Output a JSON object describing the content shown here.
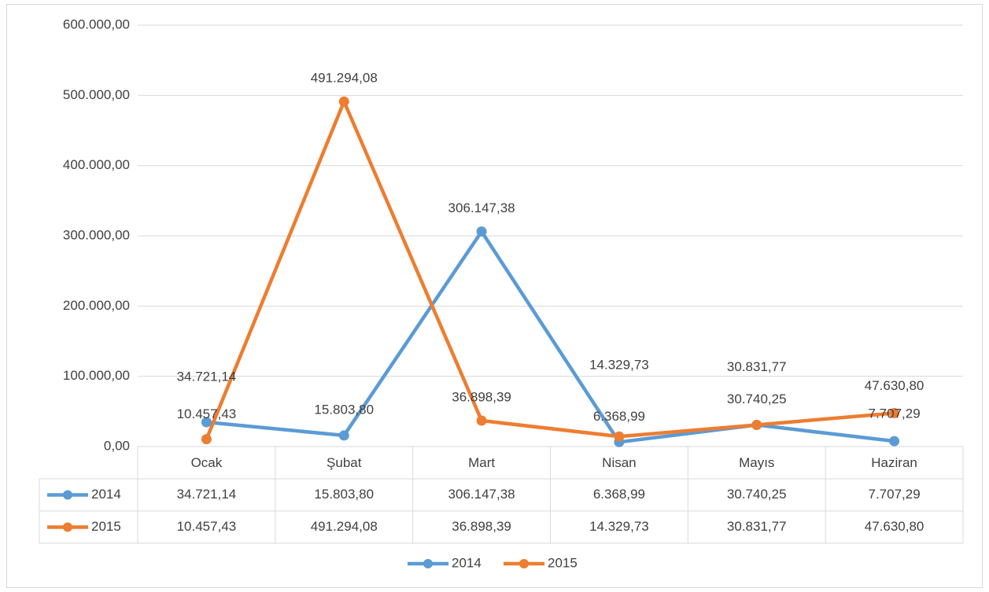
{
  "chart_data": {
    "type": "line",
    "categories": [
      "Ocak",
      "Şubat",
      "Mart",
      "Nisan",
      "Mayıs",
      "Haziran"
    ],
    "series": [
      {
        "name": "2014",
        "color": "#5b9bd5",
        "values": [
          34721.14,
          15803.8,
          306147.38,
          6368.99,
          30740.25,
          7707.29
        ],
        "value_labels": [
          "34.721,14",
          "15.803,80",
          "306.147,38",
          "6.368,99",
          "30.740,25",
          "7.707,29"
        ]
      },
      {
        "name": "2015",
        "color": "#ed7d31",
        "values": [
          10457.43,
          491294.08,
          36898.39,
          14329.73,
          30831.77,
          47630.8
        ],
        "value_labels": [
          "10.457,43",
          "491.294,08",
          "36.898,39",
          "14.329,73",
          "30.831,77",
          "47.630,80"
        ]
      }
    ],
    "ylim": [
      0,
      600000
    ],
    "yticks": [
      {
        "value": 0,
        "label": "0,00"
      },
      {
        "value": 100000,
        "label": "100.000,00"
      },
      {
        "value": 200000,
        "label": "200.000,00"
      },
      {
        "value": 300000,
        "label": "300.000,00"
      },
      {
        "value": 400000,
        "label": "400.000,00"
      },
      {
        "value": 500000,
        "label": "500.000,00"
      },
      {
        "value": 600000,
        "label": "600.000,00"
      }
    ],
    "grid": true,
    "legend": "bottom",
    "data_table": true
  }
}
